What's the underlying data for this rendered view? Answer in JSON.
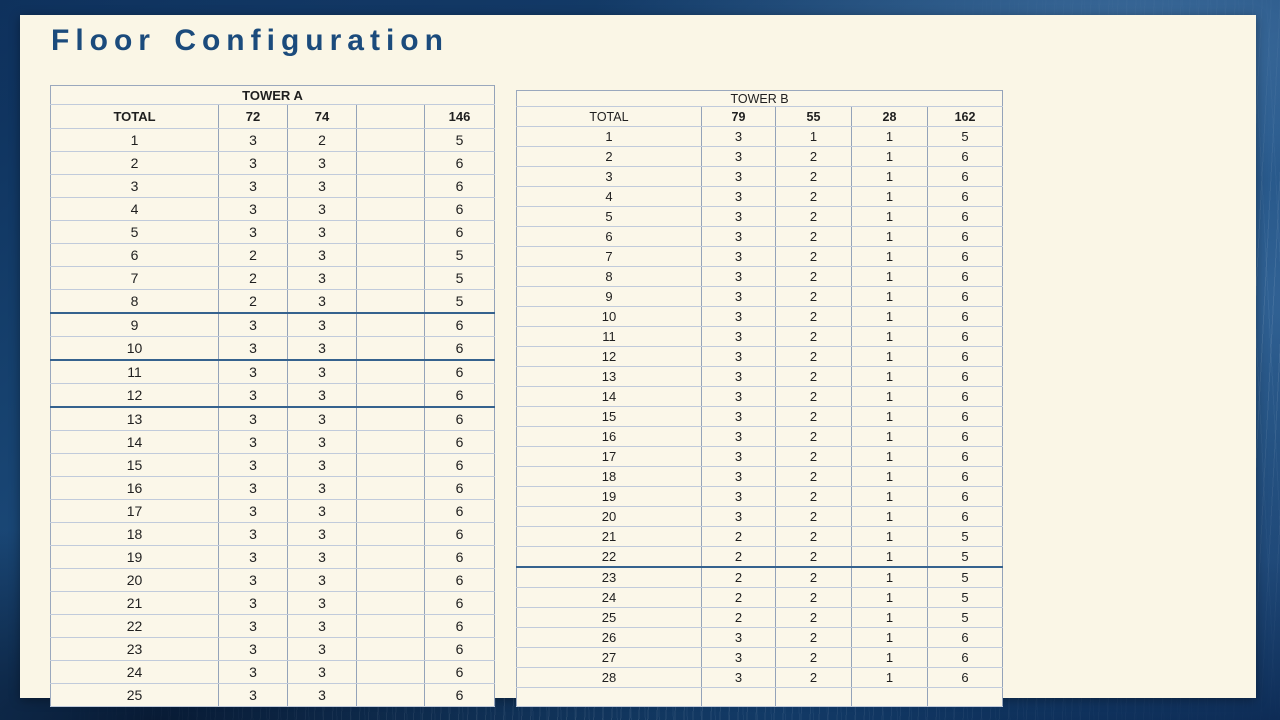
{
  "page": {
    "title": "Floor Configuration"
  },
  "colors": {
    "background_navy": "#14406e",
    "panel_cream": "#faf6e6",
    "title_blue": "#1b4b7c",
    "grid_light": "#c1cbdb",
    "grid_vertical": "#94a3b9",
    "grid_dark_rule": "#35628e",
    "cell_text": "#1f1f1f"
  },
  "tables": [
    {
      "id": "tower-a",
      "title": "TOWER A",
      "columns": [
        "TOTAL",
        "72",
        "74",
        "",
        "146"
      ],
      "dark_rule_after": [
        8,
        10,
        12
      ],
      "rows": [
        [
          "1",
          "3",
          "2",
          "",
          "5"
        ],
        [
          "2",
          "3",
          "3",
          "",
          "6"
        ],
        [
          "3",
          "3",
          "3",
          "",
          "6"
        ],
        [
          "4",
          "3",
          "3",
          "",
          "6"
        ],
        [
          "5",
          "3",
          "3",
          "",
          "6"
        ],
        [
          "6",
          "2",
          "3",
          "",
          "5"
        ],
        [
          "7",
          "2",
          "3",
          "",
          "5"
        ],
        [
          "8",
          "2",
          "3",
          "",
          "5"
        ],
        [
          "9",
          "3",
          "3",
          "",
          "6"
        ],
        [
          "10",
          "3",
          "3",
          "",
          "6"
        ],
        [
          "11",
          "3",
          "3",
          "",
          "6"
        ],
        [
          "12",
          "3",
          "3",
          "",
          "6"
        ],
        [
          "13",
          "3",
          "3",
          "",
          "6"
        ],
        [
          "14",
          "3",
          "3",
          "",
          "6"
        ],
        [
          "15",
          "3",
          "3",
          "",
          "6"
        ],
        [
          "16",
          "3",
          "3",
          "",
          "6"
        ],
        [
          "17",
          "3",
          "3",
          "",
          "6"
        ],
        [
          "18",
          "3",
          "3",
          "",
          "6"
        ],
        [
          "19",
          "3",
          "3",
          "",
          "6"
        ],
        [
          "20",
          "3",
          "3",
          "",
          "6"
        ],
        [
          "21",
          "3",
          "3",
          "",
          "6"
        ],
        [
          "22",
          "3",
          "3",
          "",
          "6"
        ],
        [
          "23",
          "3",
          "3",
          "",
          "6"
        ],
        [
          "24",
          "3",
          "3",
          "",
          "6"
        ],
        [
          "25",
          "3",
          "3",
          "",
          "6"
        ]
      ]
    },
    {
      "id": "tower-b",
      "title": "TOWER B",
      "columns": [
        "TOTAL",
        "79",
        "55",
        "28",
        "162"
      ],
      "dark_rule_after": [
        22
      ],
      "rows": [
        [
          "1",
          "3",
          "1",
          "1",
          "5"
        ],
        [
          "2",
          "3",
          "2",
          "1",
          "6"
        ],
        [
          "3",
          "3",
          "2",
          "1",
          "6"
        ],
        [
          "4",
          "3",
          "2",
          "1",
          "6"
        ],
        [
          "5",
          "3",
          "2",
          "1",
          "6"
        ],
        [
          "6",
          "3",
          "2",
          "1",
          "6"
        ],
        [
          "7",
          "3",
          "2",
          "1",
          "6"
        ],
        [
          "8",
          "3",
          "2",
          "1",
          "6"
        ],
        [
          "9",
          "3",
          "2",
          "1",
          "6"
        ],
        [
          "10",
          "3",
          "2",
          "1",
          "6"
        ],
        [
          "11",
          "3",
          "2",
          "1",
          "6"
        ],
        [
          "12",
          "3",
          "2",
          "1",
          "6"
        ],
        [
          "13",
          "3",
          "2",
          "1",
          "6"
        ],
        [
          "14",
          "3",
          "2",
          "1",
          "6"
        ],
        [
          "15",
          "3",
          "2",
          "1",
          "6"
        ],
        [
          "16",
          "3",
          "2",
          "1",
          "6"
        ],
        [
          "17",
          "3",
          "2",
          "1",
          "6"
        ],
        [
          "18",
          "3",
          "2",
          "1",
          "6"
        ],
        [
          "19",
          "3",
          "2",
          "1",
          "6"
        ],
        [
          "20",
          "3",
          "2",
          "1",
          "6"
        ],
        [
          "21",
          "2",
          "2",
          "1",
          "5"
        ],
        [
          "22",
          "2",
          "2",
          "1",
          "5"
        ],
        [
          "23",
          "2",
          "2",
          "1",
          "5"
        ],
        [
          "24",
          "2",
          "2",
          "1",
          "5"
        ],
        [
          "25",
          "2",
          "2",
          "1",
          "5"
        ],
        [
          "26",
          "3",
          "2",
          "1",
          "6"
        ],
        [
          "27",
          "3",
          "2",
          "1",
          "6"
        ],
        [
          "28",
          "3",
          "2",
          "1",
          "6"
        ],
        [
          "",
          "",
          "",
          "",
          ""
        ]
      ]
    }
  ]
}
